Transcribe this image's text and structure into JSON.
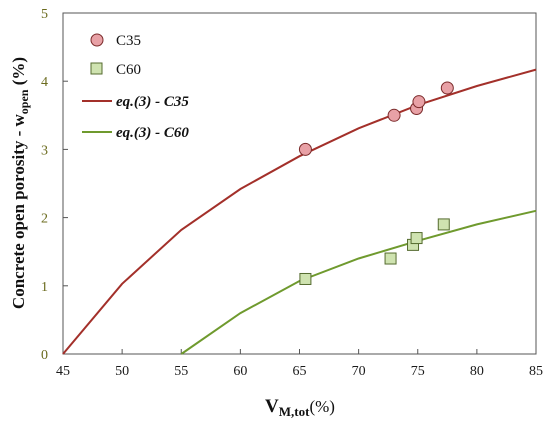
{
  "chart_data": {
    "type": "scatter",
    "xlabel_main": "V",
    "xlabel_sub": "M,tot",
    "xlabel_suffix": "(%)",
    "ylabel_main": "Concrete open porosity - w",
    "ylabel_sub": "open",
    "ylabel_suffix": " (%)",
    "xlim": [
      45,
      85
    ],
    "ylim": [
      0,
      5
    ],
    "xticks": [
      "45",
      "50",
      "55",
      "60",
      "65",
      "70",
      "75",
      "80",
      "85"
    ],
    "yticks": [
      "0",
      "1",
      "2",
      "3",
      "4",
      "5"
    ],
    "grid": false,
    "legend_position": "top-left",
    "series": [
      {
        "name": "C35",
        "kind": "markers",
        "marker": "circle",
        "fill": "#e8a1a6",
        "stroke": "#7a2a2a",
        "points": [
          {
            "x": 65.5,
            "y": 3.0
          },
          {
            "x": 73.0,
            "y": 3.5
          },
          {
            "x": 74.9,
            "y": 3.6
          },
          {
            "x": 75.1,
            "y": 3.7
          },
          {
            "x": 77.5,
            "y": 3.9
          }
        ]
      },
      {
        "name": "C60",
        "kind": "markers",
        "marker": "square",
        "fill": "#cfe3b0",
        "stroke": "#556b2f",
        "points": [
          {
            "x": 65.5,
            "y": 1.1
          },
          {
            "x": 72.7,
            "y": 1.4
          },
          {
            "x": 74.6,
            "y": 1.6
          },
          {
            "x": 74.9,
            "y": 1.7
          },
          {
            "x": 77.2,
            "y": 1.9
          }
        ]
      },
      {
        "name": "eq.(3) - C35",
        "kind": "line",
        "color": "#a3302a",
        "points": [
          {
            "x": 45,
            "y": 0
          },
          {
            "x": 50,
            "y": 1.03
          },
          {
            "x": 55,
            "y": 1.82
          },
          {
            "x": 60,
            "y": 2.42
          },
          {
            "x": 65,
            "y": 2.9
          },
          {
            "x": 70,
            "y": 3.31
          },
          {
            "x": 75,
            "y": 3.65
          },
          {
            "x": 80,
            "y": 3.93
          },
          {
            "x": 85,
            "y": 4.17
          }
        ]
      },
      {
        "name": "eq.(3) - C60",
        "kind": "line",
        "color": "#6f9a2e",
        "points": [
          {
            "x": 55,
            "y": 0
          },
          {
            "x": 60,
            "y": 0.6
          },
          {
            "x": 65,
            "y": 1.07
          },
          {
            "x": 70,
            "y": 1.4
          },
          {
            "x": 75,
            "y": 1.66
          },
          {
            "x": 80,
            "y": 1.9
          },
          {
            "x": 85,
            "y": 2.1
          }
        ]
      }
    ]
  }
}
